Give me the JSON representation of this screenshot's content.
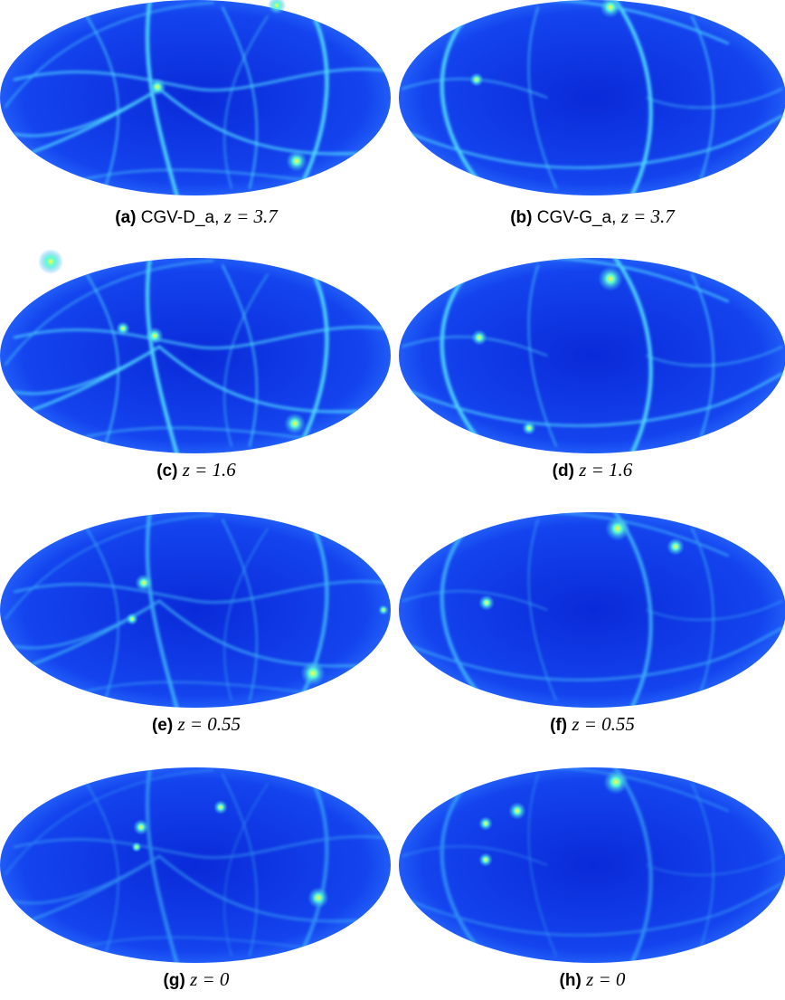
{
  "figure": {
    "panels": [
      {
        "label": "(a)",
        "name": "CGV-D_a,",
        "math": "z = 3.7"
      },
      {
        "label": "(b)",
        "name": "CGV-G_a,",
        "math": "z = 3.7"
      },
      {
        "label": "(c)",
        "math": "z = 1.6"
      },
      {
        "label": "(d)",
        "math": "z = 1.6"
      },
      {
        "label": "(e)",
        "math": "z = 0.55"
      },
      {
        "label": "(f)",
        "math": "z = 0.55"
      },
      {
        "label": "(g)",
        "math": "z = 0"
      },
      {
        "label": "(h)",
        "math": "z = 0"
      }
    ]
  }
}
